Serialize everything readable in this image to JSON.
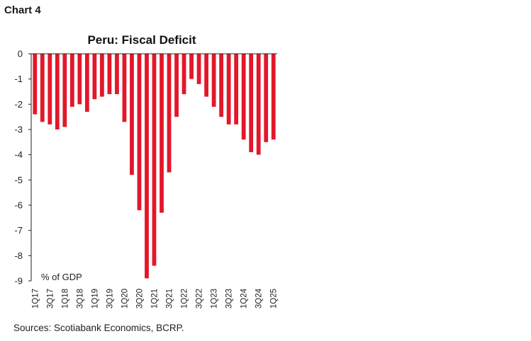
{
  "header": {
    "chart_label": "Chart 4"
  },
  "footer": {
    "source": "Sources: Scotiabank Economics, BCRP."
  },
  "chart_data": {
    "type": "bar",
    "title": "Peru: Fiscal Deficit",
    "unit_label": "% of GDP",
    "xlabel": "",
    "ylabel": "",
    "ylim": [
      -9,
      0
    ],
    "y_ticks": [
      0,
      -1,
      -2,
      -3,
      -4,
      -5,
      -6,
      -7,
      -8,
      -9
    ],
    "grid": false,
    "bar_color": "#e3172a",
    "categories": [
      "1Q17",
      "2Q17",
      "3Q17",
      "4Q17",
      "1Q18",
      "2Q18",
      "3Q18",
      "4Q18",
      "1Q19",
      "2Q19",
      "3Q19",
      "4Q19",
      "1Q20",
      "2Q20",
      "3Q20",
      "4Q20",
      "1Q21",
      "2Q21",
      "3Q21",
      "4Q21",
      "1Q22",
      "2Q22",
      "3Q22",
      "4Q22",
      "1Q23",
      "2Q23",
      "3Q23",
      "4Q23",
      "1Q24",
      "2Q24",
      "3Q24",
      "4Q24",
      "1Q25"
    ],
    "x_tick_labels": [
      "1Q17",
      "3Q17",
      "1Q18",
      "3Q18",
      "1Q19",
      "3Q19",
      "1Q20",
      "3Q20",
      "1Q21",
      "3Q21",
      "1Q22",
      "3Q22",
      "1Q23",
      "3Q23",
      "1Q24",
      "3Q24",
      "1Q25"
    ],
    "values": [
      -2.4,
      -2.7,
      -2.8,
      -3.0,
      -2.9,
      -2.1,
      -2.0,
      -2.3,
      -1.8,
      -1.7,
      -1.6,
      -1.6,
      -2.7,
      -4.8,
      -6.2,
      -8.9,
      -8.4,
      -6.3,
      -4.7,
      -2.5,
      -1.6,
      -1.0,
      -1.2,
      -1.7,
      -2.1,
      -2.5,
      -2.8,
      -2.8,
      -3.4,
      -3.9,
      -4.0,
      -3.5,
      -3.4
    ]
  }
}
